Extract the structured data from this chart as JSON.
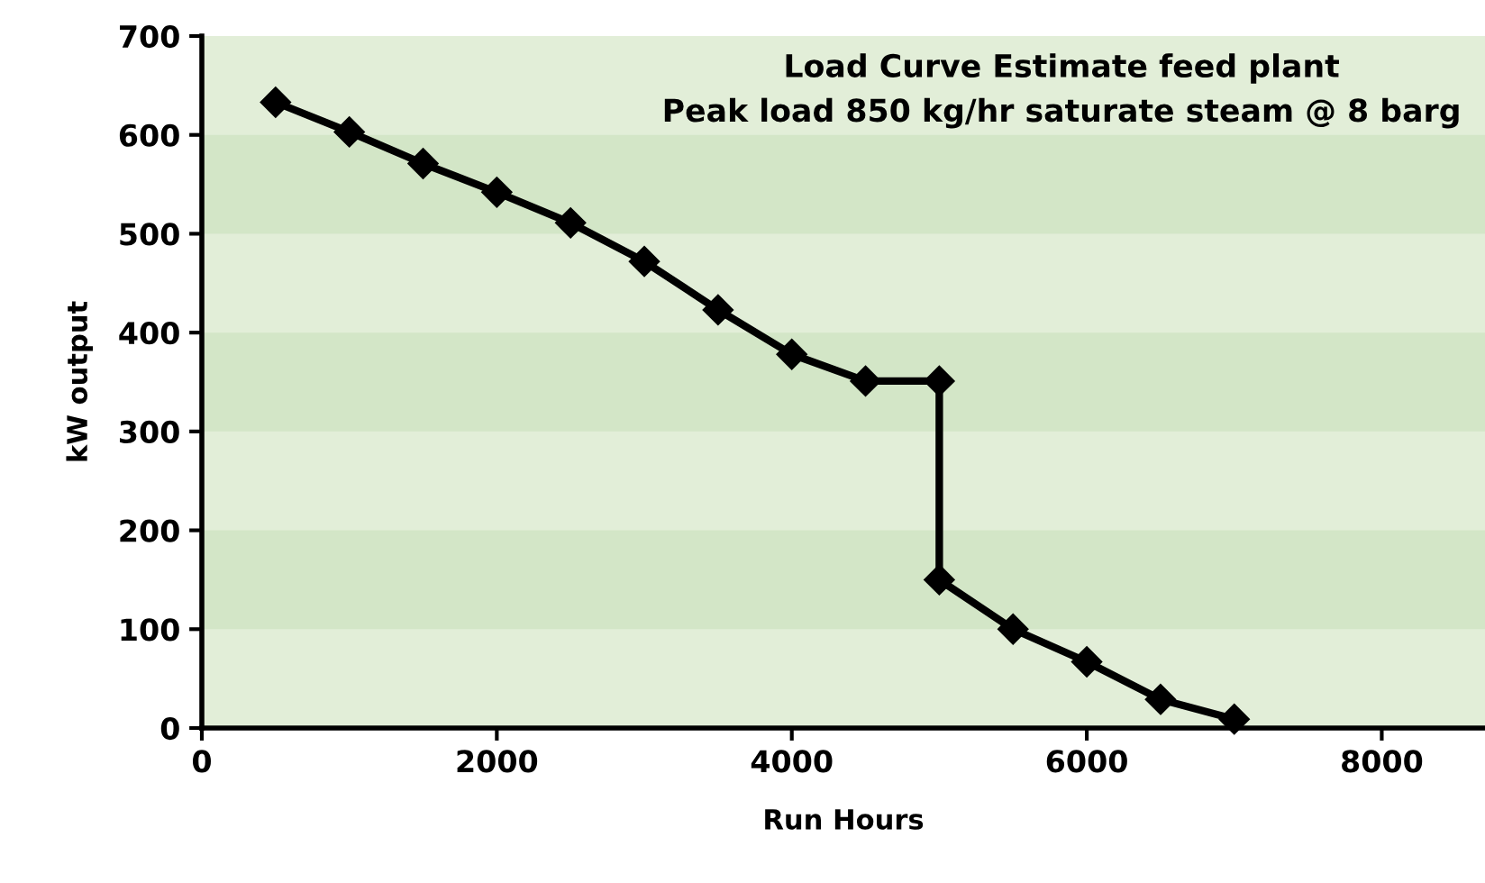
{
  "chart_data": {
    "type": "line",
    "title": "Load Curve Estimate feed plant\nPeak load 850 kg/hr saturate steam @ 8 barg",
    "xlabel": "Run Hours",
    "ylabel": "kW output",
    "x": [
      500,
      1000,
      1500,
      2000,
      2500,
      3000,
      3500,
      4000,
      4500,
      5000,
      5000,
      5500,
      6000,
      6500,
      7000
    ],
    "series": [
      {
        "color": "#000000",
        "values": [
          633,
          603,
          571,
          542,
          511,
          472,
          423,
          378,
          351,
          351,
          150,
          100,
          67,
          29,
          9
        ]
      }
    ],
    "marker": "diamond",
    "line_style": "solid",
    "xlim": [
      0,
      8700
    ],
    "xticks": [
      0,
      2000,
      4000,
      6000,
      8000
    ],
    "ylim": [
      0,
      700
    ],
    "yticks": [
      0,
      100,
      200,
      300,
      400,
      500,
      600,
      700
    ],
    "bands": [
      {
        "axis": "y",
        "from": 100,
        "to": 200,
        "color": "#d3e6c7"
      },
      {
        "axis": "y",
        "from": 300,
        "to": 400,
        "color": "#d3e6c7"
      },
      {
        "axis": "y",
        "from": 500,
        "to": 600,
        "color": "#d3e6c7"
      }
    ],
    "grid": false,
    "legend": false
  }
}
